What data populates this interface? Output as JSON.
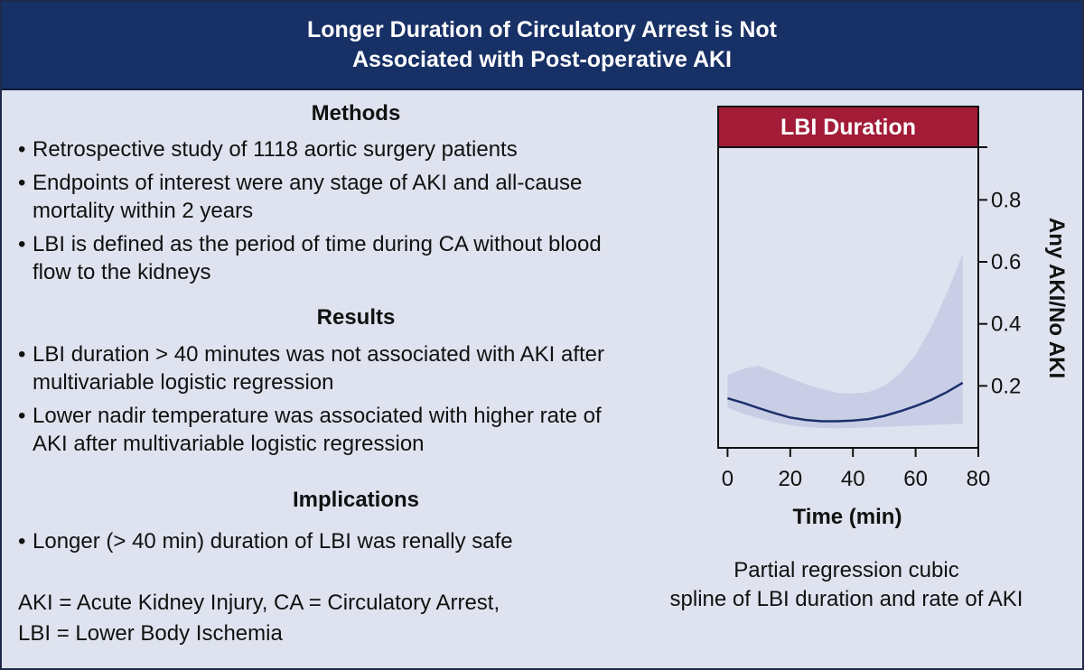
{
  "header": {
    "title_line1": "Longer Duration of Circulatory Arrest is Not",
    "title_line2": "Associated with Post-operative AKI"
  },
  "methods": {
    "heading": "Methods",
    "bullets": [
      [
        "Retrospective study of 1118 aortic surgery patients"
      ],
      [
        "Endpoints of interest were any stage of AKI and all-cause",
        "mortality within 2 years"
      ],
      [
        "LBI is defined as the period of time during CA without blood",
        "flow to the kidneys"
      ]
    ]
  },
  "results": {
    "heading": "Results",
    "bullets": [
      [
        "LBI duration > 40 minutes was not associated with AKI after",
        "multivariable logistic regression"
      ],
      [
        "Lower nadir temperature was associated with higher rate of",
        "AKI after multivariable logistic regression"
      ]
    ]
  },
  "implications": {
    "heading": "Implications",
    "bullets": [
      [
        "Longer (> 40 min) duration of LBI was renally safe"
      ]
    ]
  },
  "abbreviations": {
    "line1": "AKI = Acute Kidney Injury, CA = Circulatory Arrest,",
    "line2": "LBI = Lower Body Ischemia"
  },
  "caption": {
    "line1": "Partial regression cubic",
    "line2": "spline of LBI duration and rate of AKI"
  },
  "chart_data": {
    "type": "line",
    "title": "LBI Duration",
    "xlabel": "Time (min)",
    "ylabel": "Any AKI/No AKI",
    "xlim": [
      -3,
      80
    ],
    "ylim": [
      0.0,
      0.97
    ],
    "x_ticks": [
      0,
      20,
      40,
      60,
      80
    ],
    "y_ticks": [
      0.2,
      0.4,
      0.6,
      0.8
    ],
    "y_axis_side": "right",
    "grid": false,
    "line_color": "#1c2f6b",
    "band_color": "#c9cee6",
    "title_color": "#a21c38",
    "series": [
      {
        "x": [
          0,
          5,
          10,
          15,
          20,
          25,
          30,
          35,
          40,
          45,
          50,
          55,
          60,
          65,
          70,
          75
        ],
        "values": [
          0.16,
          0.145,
          0.128,
          0.112,
          0.098,
          0.09,
          0.086,
          0.086,
          0.088,
          0.093,
          0.103,
          0.118,
          0.135,
          0.155,
          0.18,
          0.21
        ],
        "lower": [
          0.13,
          0.11,
          0.095,
          0.083,
          0.073,
          0.067,
          0.064,
          0.063,
          0.064,
          0.066,
          0.068,
          0.07,
          0.072,
          0.074,
          0.076,
          0.078
        ],
        "upper": [
          0.235,
          0.255,
          0.265,
          0.245,
          0.225,
          0.205,
          0.19,
          0.178,
          0.175,
          0.18,
          0.2,
          0.24,
          0.3,
          0.39,
          0.5,
          0.625
        ]
      }
    ]
  }
}
